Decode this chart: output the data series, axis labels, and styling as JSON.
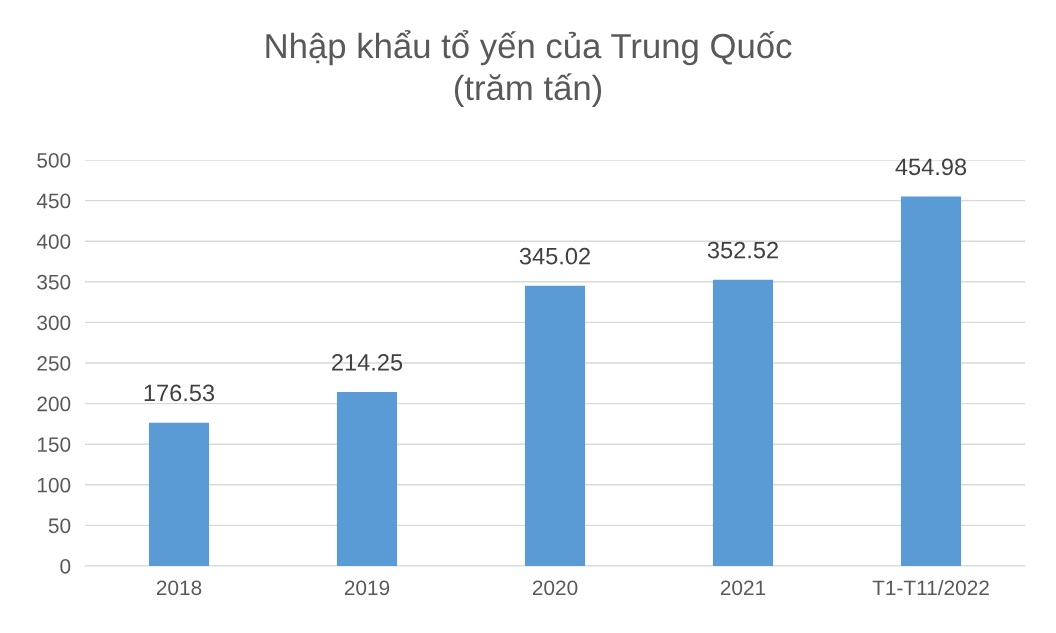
{
  "chart_data": {
    "type": "bar",
    "title": "Nhập khẩu tổ yến của Trung Quốc\n(trăm tấn)",
    "categories": [
      "2018",
      "2019",
      "2020",
      "2021",
      "T1-T11/2022"
    ],
    "values": [
      176.53,
      214.25,
      345.02,
      352.52,
      454.98
    ],
    "color": "#5b9bd5",
    "ylim": [
      0,
      500
    ],
    "yticks": [
      0,
      50,
      100,
      150,
      200,
      250,
      300,
      350,
      400,
      450,
      500
    ],
    "grid": "y",
    "data_labels": true
  }
}
